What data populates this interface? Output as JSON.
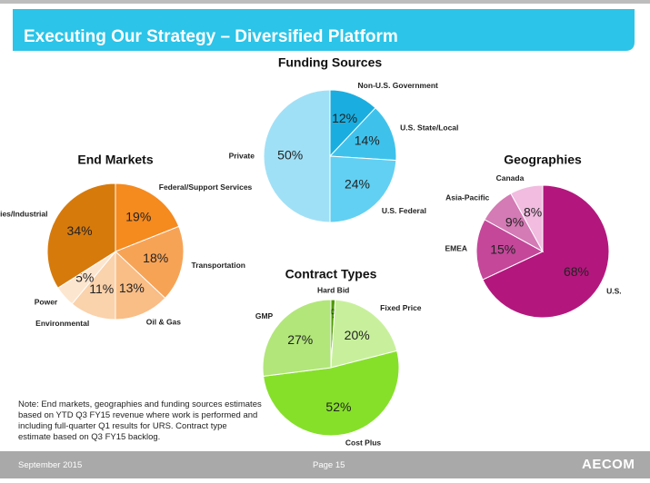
{
  "header": {
    "title": "Executing Our Strategy – Diversified Platform"
  },
  "chart_data": [
    {
      "type": "pie",
      "title": "Funding Sources",
      "categories": [
        "Non-U.S. Government",
        "U.S. State/Local",
        "U.S. Federal",
        "Private"
      ],
      "values": [
        12,
        14,
        24,
        50
      ],
      "value_labels": [
        "12%",
        "14%",
        "24%",
        "50%"
      ],
      "colors": [
        "#1aaee0",
        "#3ec2ec",
        "#62d0f2",
        "#a0e0f6"
      ]
    },
    {
      "type": "pie",
      "title": "End Markets",
      "categories": [
        "Federal/Support Services",
        "Transportation",
        "Oil & Gas",
        "Environmental",
        "Power",
        "Facilities/Industrial"
      ],
      "values": [
        19,
        18,
        13,
        11,
        5,
        34
      ],
      "value_labels": [
        "19%",
        "18%",
        "13%",
        "11%",
        "5%",
        "34%"
      ],
      "colors": [
        "#f58a1f",
        "#f7a356",
        "#f9bd86",
        "#fad2ab",
        "#fde6cf",
        "#d67a0c"
      ]
    },
    {
      "type": "pie",
      "title": "Geographies",
      "categories": [
        "U.S.",
        "EMEA",
        "Asia-Pacific",
        "Canada"
      ],
      "values": [
        68,
        15,
        9,
        8
      ],
      "value_labels": [
        "68%",
        "15%",
        "9%",
        "8%"
      ],
      "colors": [
        "#b3177d",
        "#c4479a",
        "#d47ab5",
        "#f1bce0"
      ]
    },
    {
      "type": "pie",
      "title": "Contract Types",
      "categories": [
        "Hard Bid",
        "Fixed Price",
        "Cost Plus",
        "GMP"
      ],
      "values": [
        1,
        20,
        52,
        27
      ],
      "value_labels": [
        "1%",
        "20%",
        "52%",
        "27%"
      ],
      "colors": [
        "#4e9a06",
        "#c8f09c",
        "#86e02a",
        "#b2e67a"
      ]
    }
  ],
  "note": "Note: End markets, geographies and funding sources estimates based on YTD Q3 FY15 revenue where work is performed and including full-quarter Q1 results for URS. Contract type estimate based on Q3 FY15 backlog.",
  "footer": {
    "date": "September 2015",
    "page": "Page 15",
    "logo": "AECOM"
  }
}
